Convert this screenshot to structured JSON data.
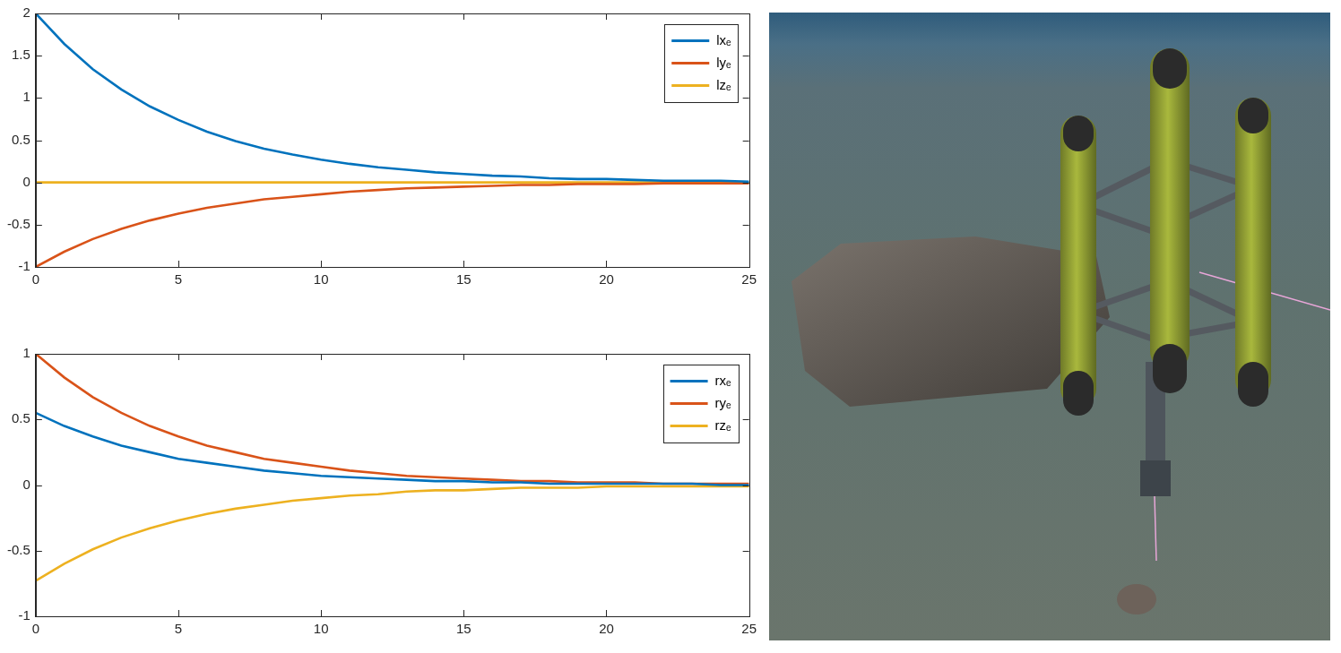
{
  "chart_data": [
    {
      "type": "line",
      "x": [
        0,
        1,
        2,
        3,
        4,
        5,
        6,
        7,
        8,
        9,
        10,
        11,
        12,
        13,
        14,
        15,
        16,
        17,
        18,
        19,
        20,
        21,
        22,
        23,
        24,
        25
      ],
      "xlim": [
        0,
        25
      ],
      "xticks": [
        0,
        5,
        10,
        15,
        20,
        25
      ],
      "ylim": [
        -1,
        2
      ],
      "yticks": [
        -1,
        -0.5,
        0,
        0.5,
        1,
        1.5,
        2
      ],
      "grid": false,
      "legend": "northeast",
      "series": [
        {
          "name": "lxₑ",
          "color": "#0072BD",
          "values": [
            2,
            1.64,
            1.34,
            1.1,
            0.9,
            0.74,
            0.6,
            0.49,
            0.4,
            0.33,
            0.27,
            0.22,
            0.18,
            0.15,
            0.12,
            0.1,
            0.08,
            0.07,
            0.05,
            0.04,
            0.04,
            0.03,
            0.02,
            0.02,
            0.02,
            0.01
          ]
        },
        {
          "name": "lyₑ",
          "color": "#D95319",
          "values": [
            -1,
            -0.82,
            -0.67,
            -0.55,
            -0.45,
            -0.37,
            -0.3,
            -0.25,
            -0.2,
            -0.17,
            -0.14,
            -0.11,
            -0.09,
            -0.07,
            -0.06,
            -0.05,
            -0.04,
            -0.03,
            -0.03,
            -0.02,
            -0.02,
            -0.02,
            -0.01,
            -0.01,
            -0.01,
            -0.01
          ]
        },
        {
          "name": "lzₑ",
          "color": "#EDB120",
          "values": [
            0,
            0,
            0,
            0,
            0,
            0,
            0,
            0,
            0,
            0,
            0,
            0,
            0,
            0,
            0,
            0,
            0,
            0,
            0,
            0,
            0,
            0,
            0,
            0,
            0,
            0
          ]
        }
      ]
    },
    {
      "type": "line",
      "x": [
        0,
        1,
        2,
        3,
        4,
        5,
        6,
        7,
        8,
        9,
        10,
        11,
        12,
        13,
        14,
        15,
        16,
        17,
        18,
        19,
        20,
        21,
        22,
        23,
        24,
        25
      ],
      "xlim": [
        0,
        25
      ],
      "xticks": [
        0,
        5,
        10,
        15,
        20,
        25
      ],
      "ylim": [
        -1,
        1
      ],
      "yticks": [
        -1,
        -0.5,
        0,
        0.5,
        1
      ],
      "grid": false,
      "legend": "northeast",
      "series": [
        {
          "name": "rxₑ",
          "color": "#0072BD",
          "values": [
            0.55,
            0.45,
            0.37,
            0.3,
            0.25,
            0.2,
            0.17,
            0.14,
            0.11,
            0.09,
            0.07,
            0.06,
            0.05,
            0.04,
            0.03,
            0.03,
            0.02,
            0.02,
            0.01,
            0.01,
            0.01,
            0.01,
            0.01,
            0.01,
            0,
            0
          ]
        },
        {
          "name": "ryₑ",
          "color": "#D95319",
          "values": [
            1,
            0.82,
            0.67,
            0.55,
            0.45,
            0.37,
            0.3,
            0.25,
            0.2,
            0.17,
            0.14,
            0.11,
            0.09,
            0.07,
            0.06,
            0.05,
            0.04,
            0.03,
            0.03,
            0.02,
            0.02,
            0.02,
            0.01,
            0.01,
            0.01,
            0.01
          ]
        },
        {
          "name": "rzₑ",
          "color": "#EDB120",
          "values": [
            -0.73,
            -0.6,
            -0.49,
            -0.4,
            -0.33,
            -0.27,
            -0.22,
            -0.18,
            -0.15,
            -0.12,
            -0.1,
            -0.08,
            -0.07,
            -0.05,
            -0.04,
            -0.04,
            -0.03,
            -0.02,
            -0.02,
            -0.02,
            -0.01,
            -0.01,
            -0.01,
            -0.01,
            -0.01,
            -0.01
          ]
        }
      ]
    }
  ]
}
